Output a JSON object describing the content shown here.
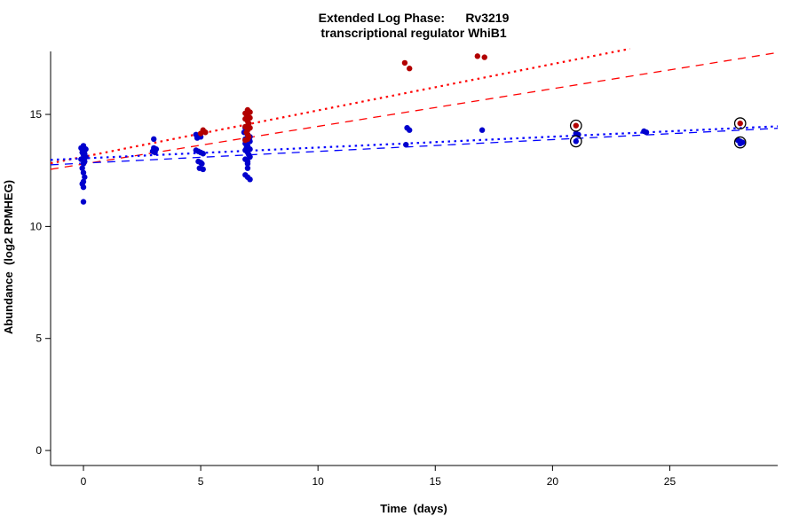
{
  "chart_data": {
    "type": "scatter",
    "title_line1": "Extended Log Phase:      Rv3219",
    "title_line2": "transcriptional regulator WhiB1",
    "xlabel": "Time  (days)",
    "ylabel": "Abundance  (log2 RPMHEG)",
    "xlim": [
      -1.4,
      29.6
    ],
    "ylim": [
      -0.67,
      17.93
    ],
    "xticks": [
      0,
      5,
      10,
      15,
      20,
      25
    ],
    "yticks": [
      0,
      5,
      10,
      15
    ],
    "grid": false,
    "legend": "none",
    "point_radius": 3.2,
    "series": [
      {
        "name": "blue-series",
        "color": "#0000CD",
        "points": [
          [
            0,
            13.6
          ],
          [
            -0.1,
            13.5
          ],
          [
            0.1,
            13.45
          ],
          [
            0,
            13.4
          ],
          [
            -0.05,
            13.3
          ],
          [
            0.05,
            13.25
          ],
          [
            0,
            13.2
          ],
          [
            0.1,
            13.1
          ],
          [
            -0.1,
            13.0
          ],
          [
            0,
            12.95
          ],
          [
            0.05,
            12.9
          ],
          [
            0,
            12.8
          ],
          [
            -0.05,
            12.6
          ],
          [
            0,
            12.4
          ],
          [
            0.05,
            12.2
          ],
          [
            0,
            12.0
          ],
          [
            -0.05,
            11.9
          ],
          [
            0,
            11.75
          ],
          [
            0,
            11.1
          ],
          [
            3,
            13.9
          ],
          [
            3,
            13.5
          ],
          [
            3.1,
            13.45
          ],
          [
            2.95,
            13.35
          ],
          [
            3.05,
            13.3
          ],
          [
            4.8,
            14.1
          ],
          [
            4.9,
            14.05
          ],
          [
            5,
            14.0
          ],
          [
            4.85,
            13.95
          ],
          [
            4.8,
            13.4
          ],
          [
            4.9,
            13.35
          ],
          [
            5,
            13.3
          ],
          [
            5.1,
            13.25
          ],
          [
            4.9,
            12.9
          ],
          [
            5,
            12.85
          ],
          [
            5.05,
            12.8
          ],
          [
            4.95,
            12.6
          ],
          [
            5.1,
            12.55
          ],
          [
            6.9,
            14.4
          ],
          [
            7,
            14.35
          ],
          [
            6.85,
            14.2
          ],
          [
            7,
            14.1
          ],
          [
            7.1,
            14.0
          ],
          [
            6.9,
            13.9
          ],
          [
            7,
            13.85
          ],
          [
            7.1,
            13.8
          ],
          [
            6.9,
            13.7
          ],
          [
            7,
            13.6
          ],
          [
            6.95,
            13.5
          ],
          [
            7.1,
            13.45
          ],
          [
            6.9,
            13.4
          ],
          [
            7,
            13.3
          ],
          [
            7.05,
            13.2
          ],
          [
            7.1,
            13.1
          ],
          [
            6.9,
            13.0
          ],
          [
            7,
            12.9
          ],
          [
            7,
            12.8
          ],
          [
            7,
            12.6
          ],
          [
            6.9,
            12.3
          ],
          [
            7,
            12.2
          ],
          [
            7.1,
            12.1
          ],
          [
            13.8,
            14.4
          ],
          [
            13.9,
            14.3
          ],
          [
            13.75,
            13.65
          ],
          [
            17,
            14.3
          ],
          [
            21,
            14.15
          ],
          [
            21.1,
            14.1
          ],
          [
            21,
            13.8
          ],
          [
            23.9,
            14.25
          ],
          [
            24,
            14.2
          ],
          [
            27.9,
            13.85
          ],
          [
            28,
            13.8
          ],
          [
            28.1,
            13.75
          ],
          [
            28,
            13.7
          ]
        ]
      },
      {
        "name": "red-series",
        "color": "#B20000",
        "points": [
          [
            5.1,
            14.3
          ],
          [
            5.2,
            14.2
          ],
          [
            5.0,
            14.15
          ],
          [
            7,
            15.2
          ],
          [
            7.1,
            15.1
          ],
          [
            6.9,
            15.05
          ],
          [
            6.95,
            15.0
          ],
          [
            7,
            14.9
          ],
          [
            7.1,
            14.85
          ],
          [
            6.9,
            14.8
          ],
          [
            7,
            14.7
          ],
          [
            7.05,
            14.6
          ],
          [
            7,
            14.5
          ],
          [
            6.9,
            14.45
          ],
          [
            7.1,
            14.4
          ],
          [
            7,
            14.3
          ],
          [
            6.95,
            14.2
          ],
          [
            7,
            14.1
          ],
          [
            7.05,
            14.0
          ],
          [
            7,
            13.9
          ],
          [
            6.9,
            13.85
          ],
          [
            13.7,
            17.3
          ],
          [
            13.9,
            17.05
          ],
          [
            16.8,
            17.6
          ],
          [
            17.1,
            17.55
          ],
          [
            21,
            14.5
          ],
          [
            28,
            14.6
          ]
        ]
      }
    ],
    "highlight_circles": [
      [
        21,
        14.5
      ],
      [
        21,
        13.8
      ],
      [
        28,
        14.6
      ],
      [
        28,
        13.75
      ]
    ],
    "trend_lines": [
      {
        "name": "fit-red-dotted",
        "color": "#FF0000",
        "dash": "2.5,4.5",
        "width": 2.2,
        "x1": -1.4,
        "y1": 12.82,
        "x2": 23.3,
        "y2": 17.93
      },
      {
        "name": "fit-red-dashed",
        "color": "#FF0000",
        "dash": "9,7",
        "width": 1.3,
        "x1": -1.4,
        "y1": 12.55,
        "x2": 29.6,
        "y2": 17.76
      },
      {
        "name": "fit-blue-dotted",
        "color": "#0000FF",
        "dash": "2.5,4.5",
        "width": 2.2,
        "x1": -1.4,
        "y1": 12.97,
        "x2": 29.6,
        "y2": 14.47
      },
      {
        "name": "fit-blue-dashed",
        "color": "#0000FF",
        "dash": "9,7",
        "width": 1.3,
        "x1": -1.4,
        "y1": 12.75,
        "x2": 29.6,
        "y2": 14.38
      }
    ],
    "axis_color": "#000000",
    "background": "#FFFFFF"
  }
}
